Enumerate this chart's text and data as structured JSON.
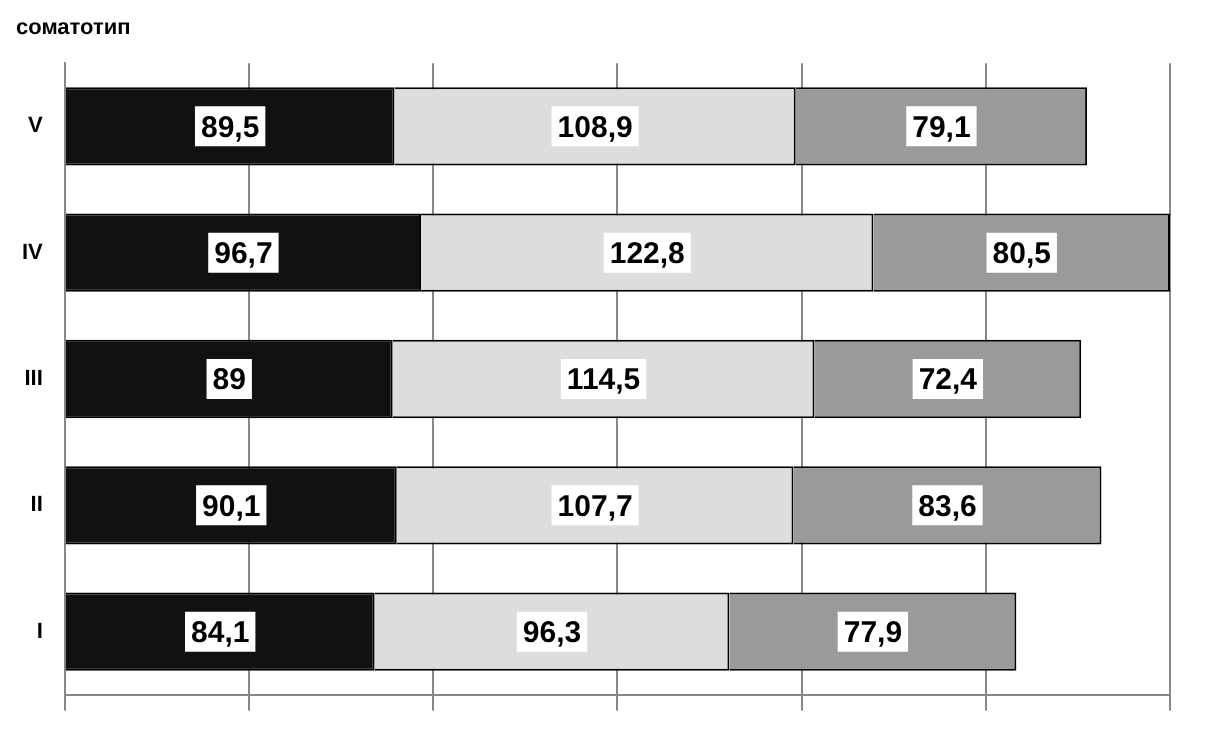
{
  "chart_data": {
    "type": "bar",
    "orientation": "horizontal",
    "stacked": true,
    "ylabel": "соматотип",
    "categories": [
      "V",
      "IV",
      "III",
      "II",
      "I"
    ],
    "series": [
      {
        "color": "#111111",
        "values": [
          89.5,
          96.7,
          89,
          90.1,
          84.1
        ],
        "value_labels": [
          "89,5",
          "96,7",
          "89",
          "90,1",
          "84,1"
        ]
      },
      {
        "color": "#dddddd",
        "values": [
          108.9,
          122.8,
          114.5,
          107.7,
          96.3
        ],
        "value_labels": [
          "108,9",
          "122,8",
          "114,5",
          "107,7",
          "96,3"
        ]
      },
      {
        "color": "#9a9a9a",
        "values": [
          79.1,
          80.5,
          72.4,
          83.6,
          77.9
        ],
        "value_labels": [
          "79,1",
          "80,5",
          "72,4",
          "83,6",
          "77,9"
        ]
      }
    ],
    "grid": "x",
    "tick_labels": "y"
  }
}
